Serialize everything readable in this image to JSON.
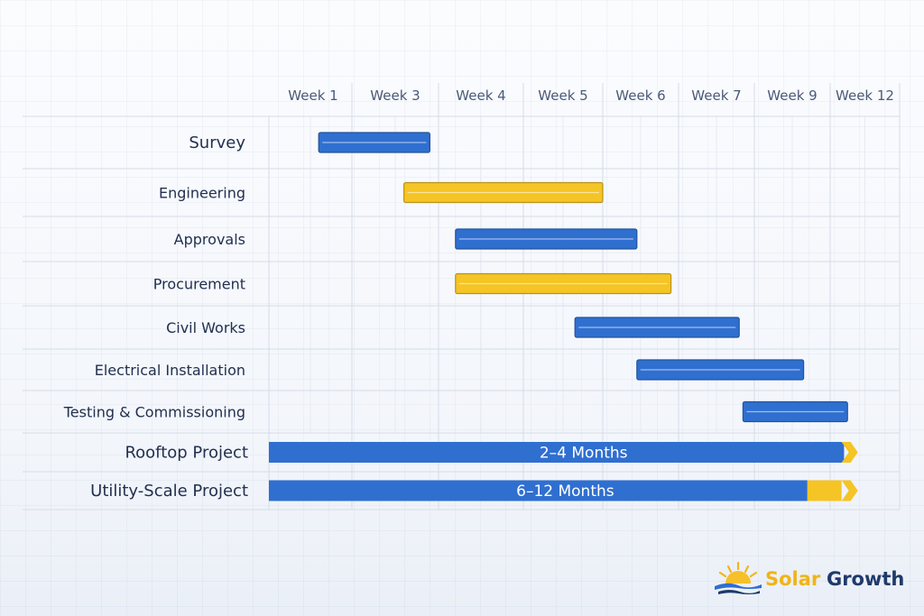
{
  "chart_data": {
    "type": "gantt",
    "x_ticks": [
      "Week 1",
      "Week 3",
      "Week 4",
      "Week 5",
      "Week 6",
      "Week 7",
      "Week 9",
      "Week 12"
    ],
    "tasks": [
      {
        "name": "Survey",
        "start": 0.6,
        "end": 1.9,
        "color": "#2f6fd0"
      },
      {
        "name": "Engineering",
        "start": 1.6,
        "end": 4.0,
        "color": "#f5c425"
      },
      {
        "name": "Approvals",
        "start": 2.2,
        "end": 4.45,
        "color": "#2f6fd0"
      },
      {
        "name": "Procurement",
        "start": 2.2,
        "end": 4.9,
        "color": "#f5c425"
      },
      {
        "name": "Civil Works",
        "start": 3.65,
        "end": 5.8,
        "color": "#2f6fd0"
      },
      {
        "name": "Electrical Installation",
        "start": 4.45,
        "end": 6.65,
        "color": "#2f6fd0"
      },
      {
        "name": "Testing & Commissioning",
        "start": 5.85,
        "end": 7.25,
        "color": "#2f6fd0"
      }
    ],
    "summary": [
      {
        "name": "Rooftop Project",
        "label": "2–4 Months",
        "start": 0,
        "end": 7.2,
        "tail_end": 7.45
      },
      {
        "name": "Utility-Scale Project",
        "label": "6–12 Months",
        "start": 0,
        "end": 6.7,
        "tail_end": 7.45
      }
    ],
    "colors": {
      "blue": "#2f6fd0",
      "yellow": "#f5c425",
      "grid": "#d5dce8"
    }
  },
  "logo": {
    "brand_first": "Solar",
    "brand_second": "Growth"
  }
}
